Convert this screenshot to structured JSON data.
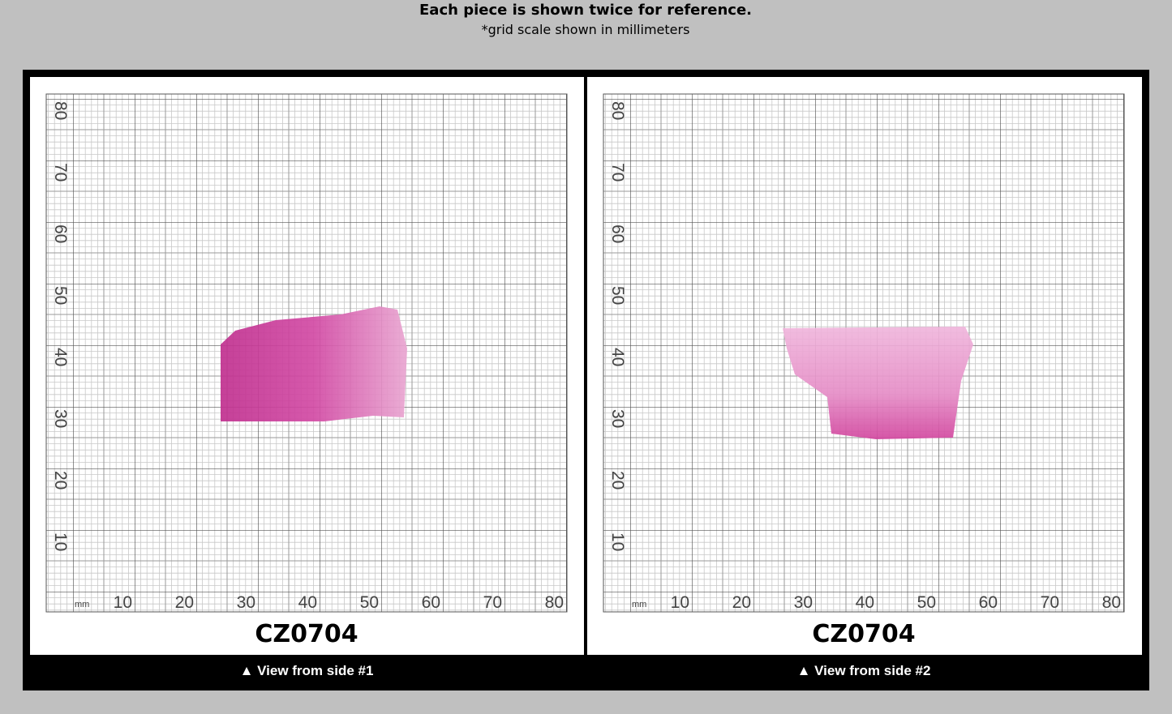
{
  "header": {
    "title": "Each piece is shown twice for reference.",
    "subtitle": "*grid scale shown in millimeters"
  },
  "panels": [
    {
      "code": "CZ0704",
      "caption": "▲ View from side #1",
      "unit": "mm",
      "x_ticks": [
        10,
        20,
        30,
        40,
        50,
        60,
        70,
        80
      ],
      "y_ticks": [
        10,
        20,
        30,
        40,
        50,
        60,
        70,
        80
      ]
    },
    {
      "code": "CZ0704",
      "caption": "▲ View from side #2",
      "unit": "mm",
      "x_ticks": [
        10,
        20,
        30,
        40,
        50,
        60,
        70,
        80
      ],
      "y_ticks": [
        10,
        20,
        30,
        40,
        50,
        60,
        70,
        80
      ]
    }
  ]
}
